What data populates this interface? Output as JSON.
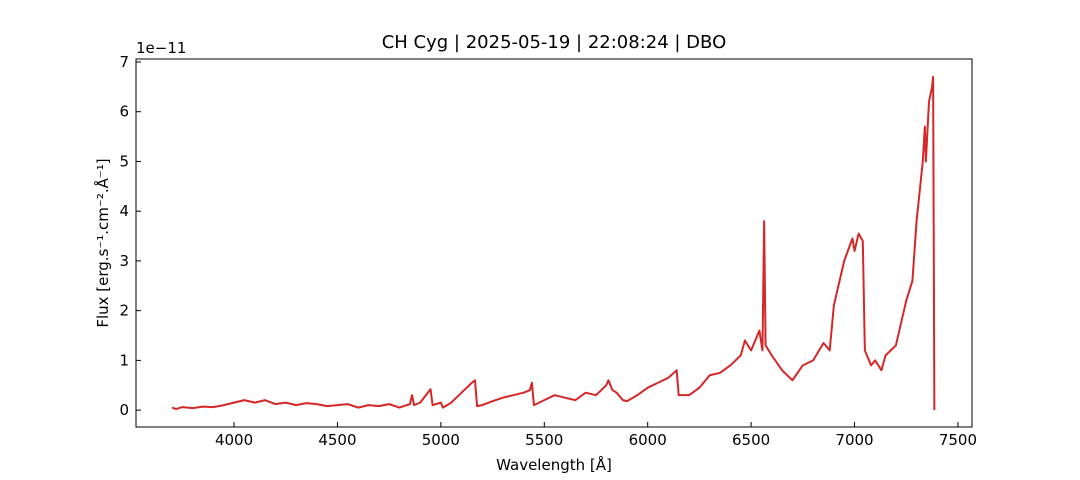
{
  "chart_data": {
    "type": "line",
    "title": "CH Cyg | 2025-05-19 | 22:08:24 | DBO",
    "xlabel": "Wavelength [Å]",
    "ylabel": "Flux [erg.s⁻¹.cm⁻².Å⁻¹]",
    "offset_label": "1e−11",
    "color": "#d62728",
    "x": [
      3700,
      3720,
      3750,
      3800,
      3850,
      3900,
      3950,
      4000,
      4050,
      4100,
      4150,
      4200,
      4250,
      4300,
      4350,
      4400,
      4450,
      4500,
      4550,
      4600,
      4650,
      4700,
      4750,
      4800,
      4850,
      4861,
      4870,
      4900,
      4950,
      4960,
      5000,
      5010,
      5050,
      5100,
      5150,
      5165,
      5175,
      5200,
      5250,
      5300,
      5350,
      5400,
      5430,
      5440,
      5450,
      5500,
      5550,
      5600,
      5650,
      5700,
      5750,
      5800,
      5810,
      5830,
      5850,
      5880,
      5900,
      5950,
      6000,
      6050,
      6100,
      6140,
      6150,
      6200,
      6250,
      6300,
      6350,
      6400,
      6450,
      6470,
      6500,
      6540,
      6555,
      6563,
      6570,
      6600,
      6650,
      6700,
      6750,
      6800,
      6850,
      6880,
      6900,
      6950,
      6990,
      7000,
      7020,
      7040,
      7050,
      7080,
      7100,
      7130,
      7150,
      7200,
      7250,
      7280,
      7300,
      7330,
      7340,
      7345,
      7360,
      7375,
      7380,
      7386
    ],
    "values": [
      0.05,
      0.02,
      0.06,
      0.04,
      0.07,
      0.06,
      0.1,
      0.15,
      0.2,
      0.15,
      0.2,
      0.12,
      0.15,
      0.1,
      0.14,
      0.12,
      0.08,
      0.1,
      0.12,
      0.05,
      0.1,
      0.08,
      0.12,
      0.05,
      0.12,
      0.3,
      0.1,
      0.15,
      0.42,
      0.1,
      0.15,
      0.05,
      0.15,
      0.35,
      0.55,
      0.6,
      0.08,
      0.1,
      0.18,
      0.25,
      0.3,
      0.35,
      0.4,
      0.55,
      0.1,
      0.2,
      0.3,
      0.25,
      0.2,
      0.35,
      0.3,
      0.5,
      0.6,
      0.4,
      0.35,
      0.2,
      0.18,
      0.3,
      0.45,
      0.55,
      0.65,
      0.8,
      0.3,
      0.3,
      0.45,
      0.7,
      0.75,
      0.9,
      1.1,
      1.4,
      1.2,
      1.6,
      1.2,
      3.8,
      1.3,
      1.1,
      0.8,
      0.6,
      0.9,
      1.0,
      1.35,
      1.2,
      2.1,
      3.0,
      3.45,
      3.2,
      3.55,
      3.4,
      1.2,
      0.9,
      1.0,
      0.8,
      1.1,
      1.3,
      2.2,
      2.6,
      3.8,
      5.0,
      5.7,
      5.0,
      6.2,
      6.5,
      6.7,
      0.0
    ],
    "xlim": [
      3526,
      7568
    ],
    "xticks": [
      4000,
      4500,
      5000,
      5500,
      6000,
      6500,
      7000,
      7500
    ],
    "ylim": [
      -0.34,
      7.06
    ],
    "yticks": [
      0,
      1,
      2,
      3,
      4,
      5,
      6,
      7
    ]
  }
}
